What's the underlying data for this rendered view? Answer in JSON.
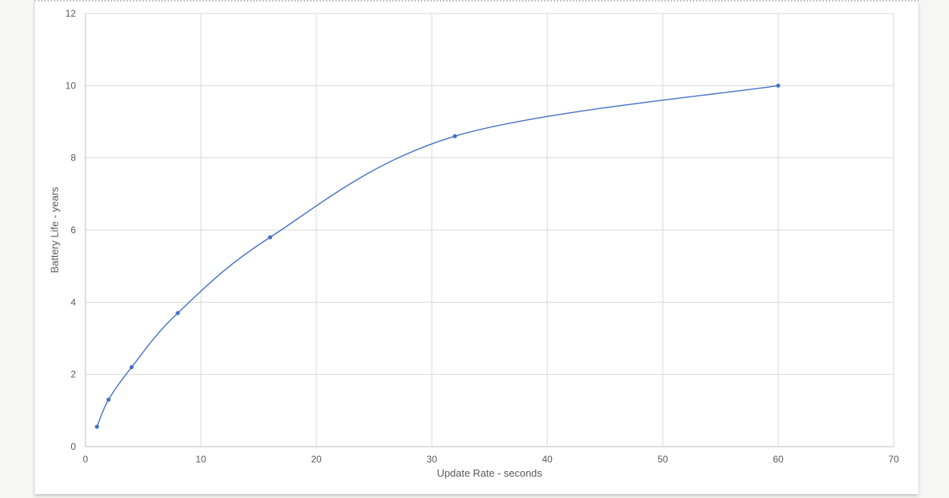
{
  "chart_data": {
    "type": "line",
    "title": "",
    "xlabel": "Update Rate - seconds",
    "ylabel": "Battery Life - years",
    "x": [
      1,
      2,
      4,
      8,
      16,
      32,
      60
    ],
    "series": [
      {
        "name": "Battery Life",
        "values": [
          0.55,
          1.3,
          2.2,
          3.7,
          5.8,
          8.6,
          10
        ]
      }
    ],
    "xlim": [
      0,
      70
    ],
    "ylim": [
      0,
      12
    ],
    "x_ticks": [
      "0",
      "10",
      "20",
      "30",
      "40",
      "50",
      "60",
      "70"
    ],
    "y_ticks": [
      "0",
      "2",
      "4",
      "6",
      "8",
      "10",
      "12"
    ],
    "grid": true,
    "legend": false,
    "smooth": true,
    "colors": {
      "line": "#4472C4",
      "marker": "#4472C4",
      "gridline": "#D9D9D9",
      "axis": "#BFBFBF",
      "tick_label": "#595959",
      "axis_title": "#595959"
    }
  }
}
